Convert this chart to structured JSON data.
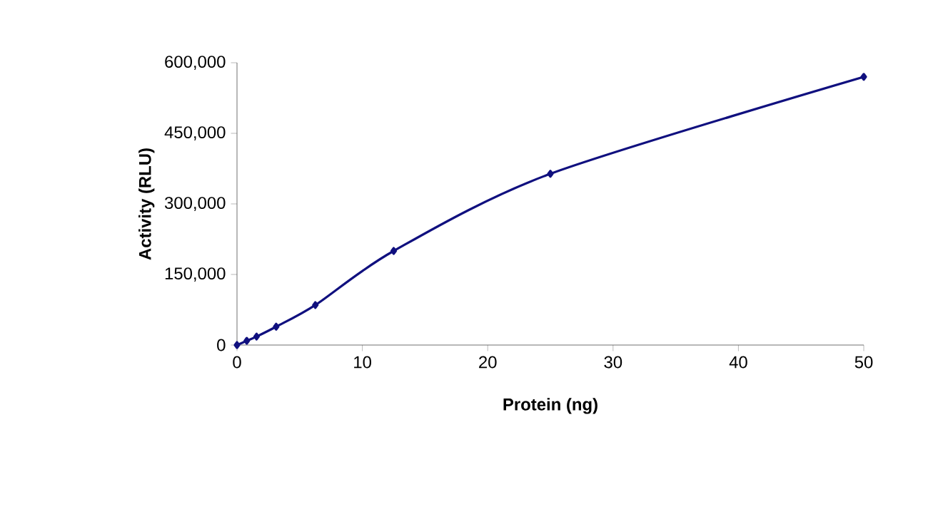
{
  "chart_data": {
    "type": "line",
    "xlabel": "Protein (ng)",
    "ylabel": "Activity (RLU)",
    "x": [
      0,
      0.78,
      1.56,
      3.125,
      6.25,
      12.5,
      25,
      50
    ],
    "series": [
      {
        "color": "#10107f",
        "values": [
          0,
          9000,
          18000,
          39000,
          85000,
          200000,
          364000,
          570000
        ]
      }
    ],
    "xlim": [
      0,
      50
    ],
    "ylim": [
      0,
      600000
    ],
    "xticks": [
      0,
      10,
      20,
      30,
      40,
      50
    ],
    "yticks": [
      {
        "value": 0,
        "label": "0"
      },
      {
        "value": 150000,
        "label": "150,000"
      },
      {
        "value": 300000,
        "label": "300,000"
      },
      {
        "value": 450000,
        "label": "450,000"
      },
      {
        "value": 600000,
        "label": "600,000"
      }
    ],
    "marker": "diamond"
  }
}
